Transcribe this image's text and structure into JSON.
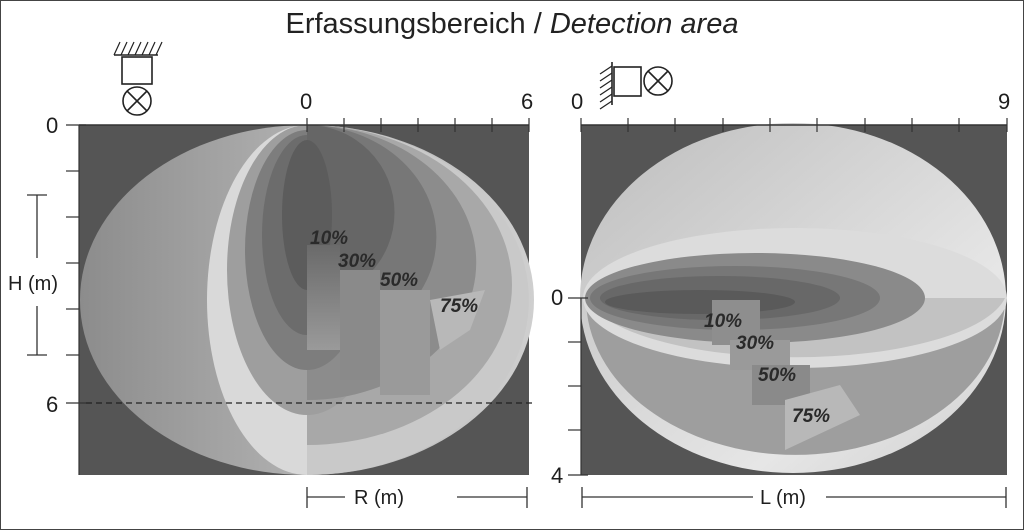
{
  "title": {
    "german": "Erfassungsbereich",
    "separator": " / ",
    "english": "Detection area"
  },
  "left_panel": {
    "mount": "ceiling",
    "r_axis": {
      "start": "0",
      "end": "6",
      "label": "R (m)"
    },
    "h_axis": {
      "start": "0",
      "mark": "6",
      "label": "H (m)"
    },
    "zones": [
      "10%",
      "30%",
      "50%",
      "75%"
    ],
    "colors": {
      "background": "#555555",
      "zone_outer": "#bdbdbd",
      "zone_inner": "#6f6f6f"
    }
  },
  "right_panel": {
    "mount": "wall",
    "l_axis": {
      "start": "0",
      "end": "9",
      "label": "L (m)"
    },
    "h_axis": {
      "zero": "0",
      "end": "4"
    },
    "zones": [
      "10%",
      "30%",
      "50%",
      "75%"
    ]
  }
}
